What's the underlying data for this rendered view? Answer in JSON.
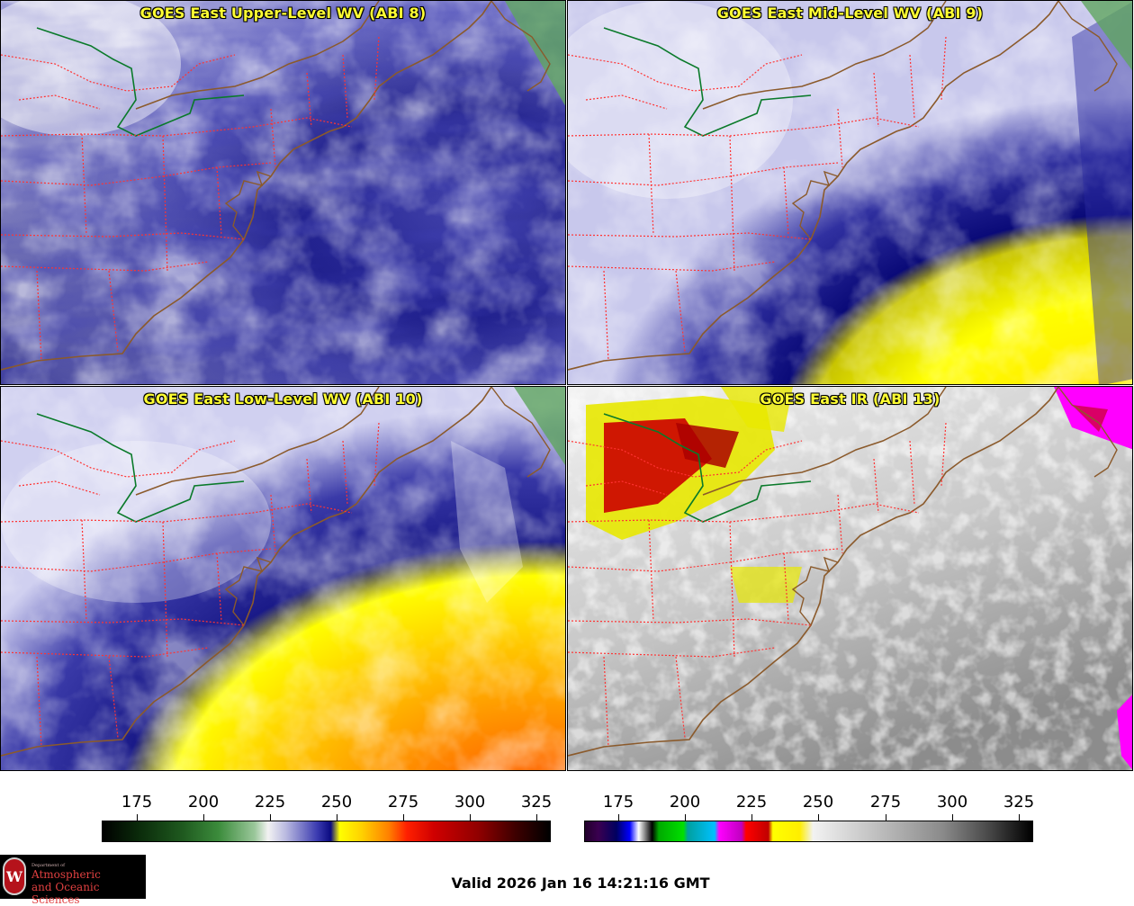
{
  "panels": [
    {
      "title": "GOES East Upper-Level WV (ABI 8)"
    },
    {
      "title": "GOES East Mid-Level WV (ABI 9)"
    },
    {
      "title": "GOES East Low-Level WV (ABI 10)"
    },
    {
      "title": "GOES East IR (ABI 13)"
    }
  ],
  "colorbar_wv": {
    "ticks": [
      "175",
      "200",
      "225",
      "250",
      "275",
      "300",
      "325"
    ]
  },
  "colorbar_ir": {
    "ticks": [
      "175",
      "200",
      "225",
      "250",
      "275",
      "300",
      "325"
    ]
  },
  "logo": {
    "line1": "Department of",
    "line2": "Atmospheric",
    "line3": "and Oceanic Sciences",
    "seal": "W"
  },
  "footer": {
    "valid_time": "Valid 2026 Jan 16 14:21:16 GMT"
  },
  "colors": {
    "title": "#ffff33",
    "state_lines": "#ff3333",
    "coast": "#8b5a2b",
    "border_green": "#0a7a2a"
  }
}
